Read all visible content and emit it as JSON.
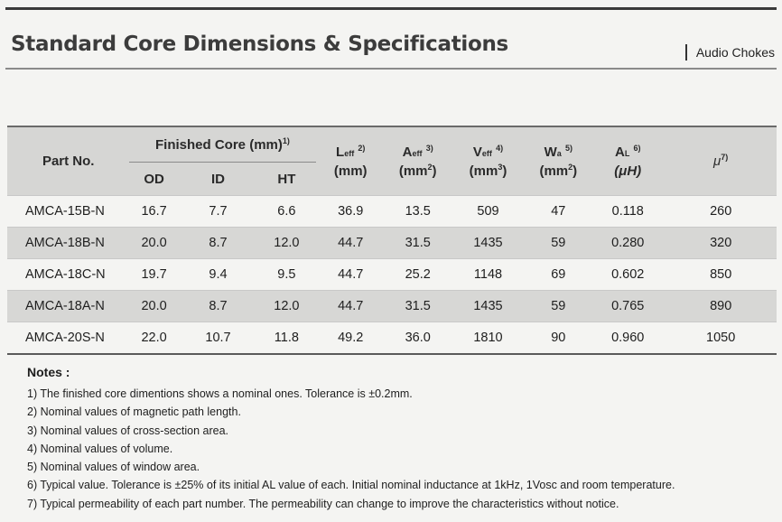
{
  "page": {
    "title": "Standard Core Dimensions & Specifications",
    "section": "Audio Chokes"
  },
  "table": {
    "headers": {
      "part_no": "Part No.",
      "finished_core": "Finished Core (mm)",
      "finished_core_note": "1)",
      "od": "OD",
      "id": "ID",
      "ht": "HT",
      "leff_sym": "L",
      "leff_sub": "eff",
      "leff_note": "2)",
      "leff_unit": "(mm)",
      "aeff_sym": "A",
      "aeff_sub": "eff",
      "aeff_note": "3)",
      "aeff_unit_a": "(mm",
      "aeff_unit_exp": "2",
      "aeff_unit_b": ")",
      "veff_sym": "V",
      "veff_sub": "eff",
      "veff_note": "4)",
      "veff_unit_a": "(mm",
      "veff_unit_exp": "3",
      "veff_unit_b": ")",
      "wa_sym": "W",
      "wa_sub": "a",
      "wa_note": "5)",
      "wa_unit_a": "(mm",
      "wa_unit_exp": "2",
      "wa_unit_b": ")",
      "al_sym": "A",
      "al_sub": "L",
      "al_note": "6)",
      "al_unit": "(μH)",
      "mu_sym": "μ",
      "mu_note": "7)"
    },
    "rows": [
      {
        "part": "AMCA-15B-N",
        "od": "16.7",
        "id": "7.7",
        "ht": "6.6",
        "leff": "36.9",
        "aeff": "13.5",
        "veff": "509",
        "wa": "47",
        "al": "0.118",
        "mu": "260"
      },
      {
        "part": "AMCA-18B-N",
        "od": "20.0",
        "id": "8.7",
        "ht": "12.0",
        "leff": "44.7",
        "aeff": "31.5",
        "veff": "1435",
        "wa": "59",
        "al": "0.280",
        "mu": "320"
      },
      {
        "part": "AMCA-18C-N",
        "od": "19.7",
        "id": "9.4",
        "ht": "9.5",
        "leff": "44.7",
        "aeff": "25.2",
        "veff": "1148",
        "wa": "69",
        "al": "0.602",
        "mu": "850"
      },
      {
        "part": "AMCA-18A-N",
        "od": "20.0",
        "id": "8.7",
        "ht": "12.0",
        "leff": "44.7",
        "aeff": "31.5",
        "veff": "1435",
        "wa": "59",
        "al": "0.765",
        "mu": "890"
      },
      {
        "part": "AMCA-20S-N",
        "od": "22.0",
        "id": "10.7",
        "ht": "11.8",
        "leff": "49.2",
        "aeff": "36.0",
        "veff": "1810",
        "wa": "90",
        "al": "0.960",
        "mu": "1050"
      }
    ]
  },
  "notes": {
    "title": "Notes :",
    "items": [
      "1) The finished core dimentions shows a nominal ones. Tolerance is ±0.2mm.",
      "2) Nominal values of magnetic path length.",
      "3) Nominal values of cross-section area.",
      "4) Nominal values of volume.",
      "5) Nominal values of window area.",
      "6) Typical value. Tolerance is ±25% of its initial AL value of each. Initial nominal inductance at 1kHz, 1Vosc and room temperature.",
      "7) Typical permeability of each part number. The permeability can change to improve the characteristics without notice."
    ]
  }
}
